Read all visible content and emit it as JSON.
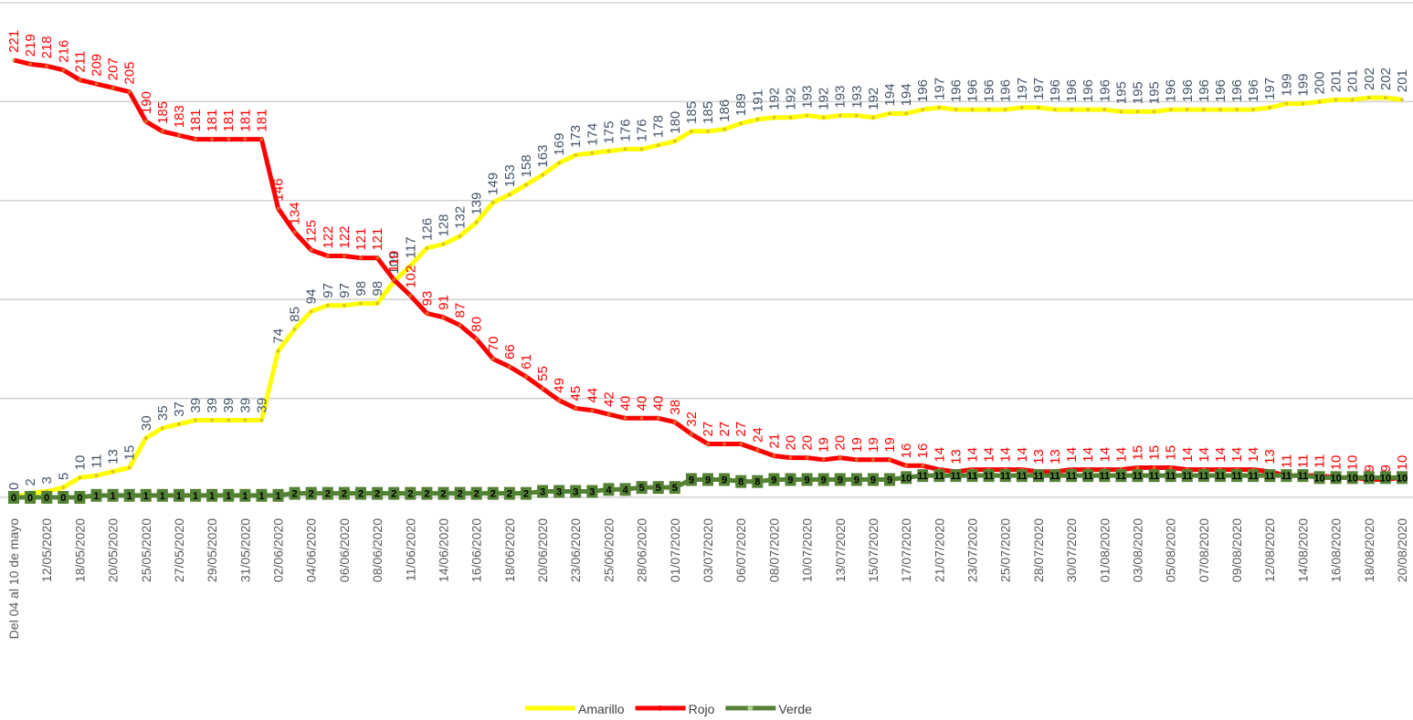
{
  "chart_data": {
    "type": "line",
    "categories": [
      "Del 04 al 10 de mayo",
      null,
      "12/05/2020",
      null,
      "18/05/2020",
      null,
      "20/05/2020",
      null,
      "25/05/2020",
      null,
      "27/05/2020",
      null,
      "29/05/2020",
      null,
      "31/05/2020",
      null,
      "02/06/2020",
      null,
      "04/06/2020",
      null,
      "06/06/2020",
      null,
      "08/06/2020",
      null,
      "11/06/2020",
      null,
      "14/06/2020",
      null,
      "16/06/2020",
      null,
      "18/06/2020",
      null,
      "20/06/2020",
      null,
      "23/06/2020",
      null,
      "25/06/2020",
      null,
      "28/06/2020",
      null,
      "01/07/2020",
      null,
      "03/07/2020",
      null,
      "06/07/2020",
      null,
      "08/07/2020",
      null,
      "10/07/2020",
      null,
      "13/07/2020",
      null,
      "15/07/2020",
      null,
      "17/07/2020",
      null,
      "21/07/2020",
      null,
      "23/07/2020",
      null,
      "25/07/2020",
      null,
      "28/07/2020",
      null,
      "30/07/2020",
      null,
      "01/08/2020",
      null,
      "03/08/2020",
      null,
      "05/08/2020",
      null,
      "07/08/2020",
      null,
      "09/08/2020",
      null,
      "12/08/2020",
      null,
      "14/08/2020",
      null,
      "16/08/2020",
      null,
      "18/08/2020",
      null,
      "20/08/2020"
    ],
    "series": [
      {
        "name": "Amarillo",
        "color": "#ffff00",
        "label_color": "#44546a",
        "values": [
          0,
          2,
          3,
          5,
          10,
          11,
          13,
          15,
          30,
          35,
          37,
          39,
          39,
          39,
          39,
          39,
          74,
          85,
          94,
          97,
          97,
          98,
          98,
          109,
          117,
          126,
          128,
          132,
          139,
          149,
          153,
          158,
          163,
          169,
          173,
          174,
          175,
          176,
          176,
          178,
          180,
          185,
          185,
          186,
          189,
          191,
          192,
          192,
          193,
          192,
          193,
          193,
          192,
          194,
          194,
          196,
          197,
          196,
          196,
          196,
          196,
          197,
          197,
          196,
          196,
          196,
          196,
          195,
          195,
          195,
          196,
          196,
          196,
          196,
          196,
          196,
          197,
          199,
          199,
          200,
          201,
          201,
          202,
          202,
          201
        ]
      },
      {
        "name": "Rojo",
        "color": "#ff0000",
        "label_color": "#ff0000",
        "values": [
          221,
          219,
          218,
          216,
          211,
          209,
          207,
          205,
          190,
          185,
          183,
          181,
          181,
          181,
          181,
          181,
          146,
          134,
          125,
          122,
          122,
          121,
          121,
          110,
          102,
          93,
          91,
          87,
          80,
          70,
          66,
          61,
          55,
          49,
          45,
          44,
          42,
          40,
          40,
          40,
          38,
          32,
          27,
          27,
          27,
          24,
          21,
          20,
          20,
          19,
          20,
          19,
          19,
          19,
          16,
          16,
          14,
          13,
          14,
          14,
          14,
          14,
          13,
          13,
          14,
          14,
          14,
          14,
          15,
          15,
          15,
          14,
          14,
          14,
          14,
          14,
          13,
          11,
          11,
          11,
          10,
          10,
          9,
          9,
          10
        ]
      },
      {
        "name": "Verde",
        "color": "#548235",
        "label_color": "#000000",
        "values": [
          0,
          0,
          0,
          0,
          0,
          1,
          1,
          1,
          1,
          1,
          1,
          1,
          1,
          1,
          1,
          1,
          1,
          2,
          2,
          2,
          2,
          2,
          2,
          2,
          2,
          2,
          2,
          2,
          2,
          2,
          2,
          2,
          3,
          3,
          3,
          3,
          4,
          4,
          5,
          5,
          5,
          9,
          9,
          9,
          8,
          8,
          9,
          9,
          9,
          9,
          9,
          9,
          9,
          9,
          10,
          11,
          11,
          11,
          11,
          11,
          11,
          11,
          11,
          11,
          11,
          11,
          11,
          11,
          11,
          11,
          11,
          11,
          11,
          11,
          11,
          11,
          11,
          11,
          11,
          10,
          10,
          10,
          10,
          10,
          10
        ]
      }
    ],
    "ylim": [
      0,
      250
    ],
    "yticks": [
      0,
      50,
      100,
      150,
      200,
      250
    ],
    "grid": true,
    "legend": "bottom"
  }
}
